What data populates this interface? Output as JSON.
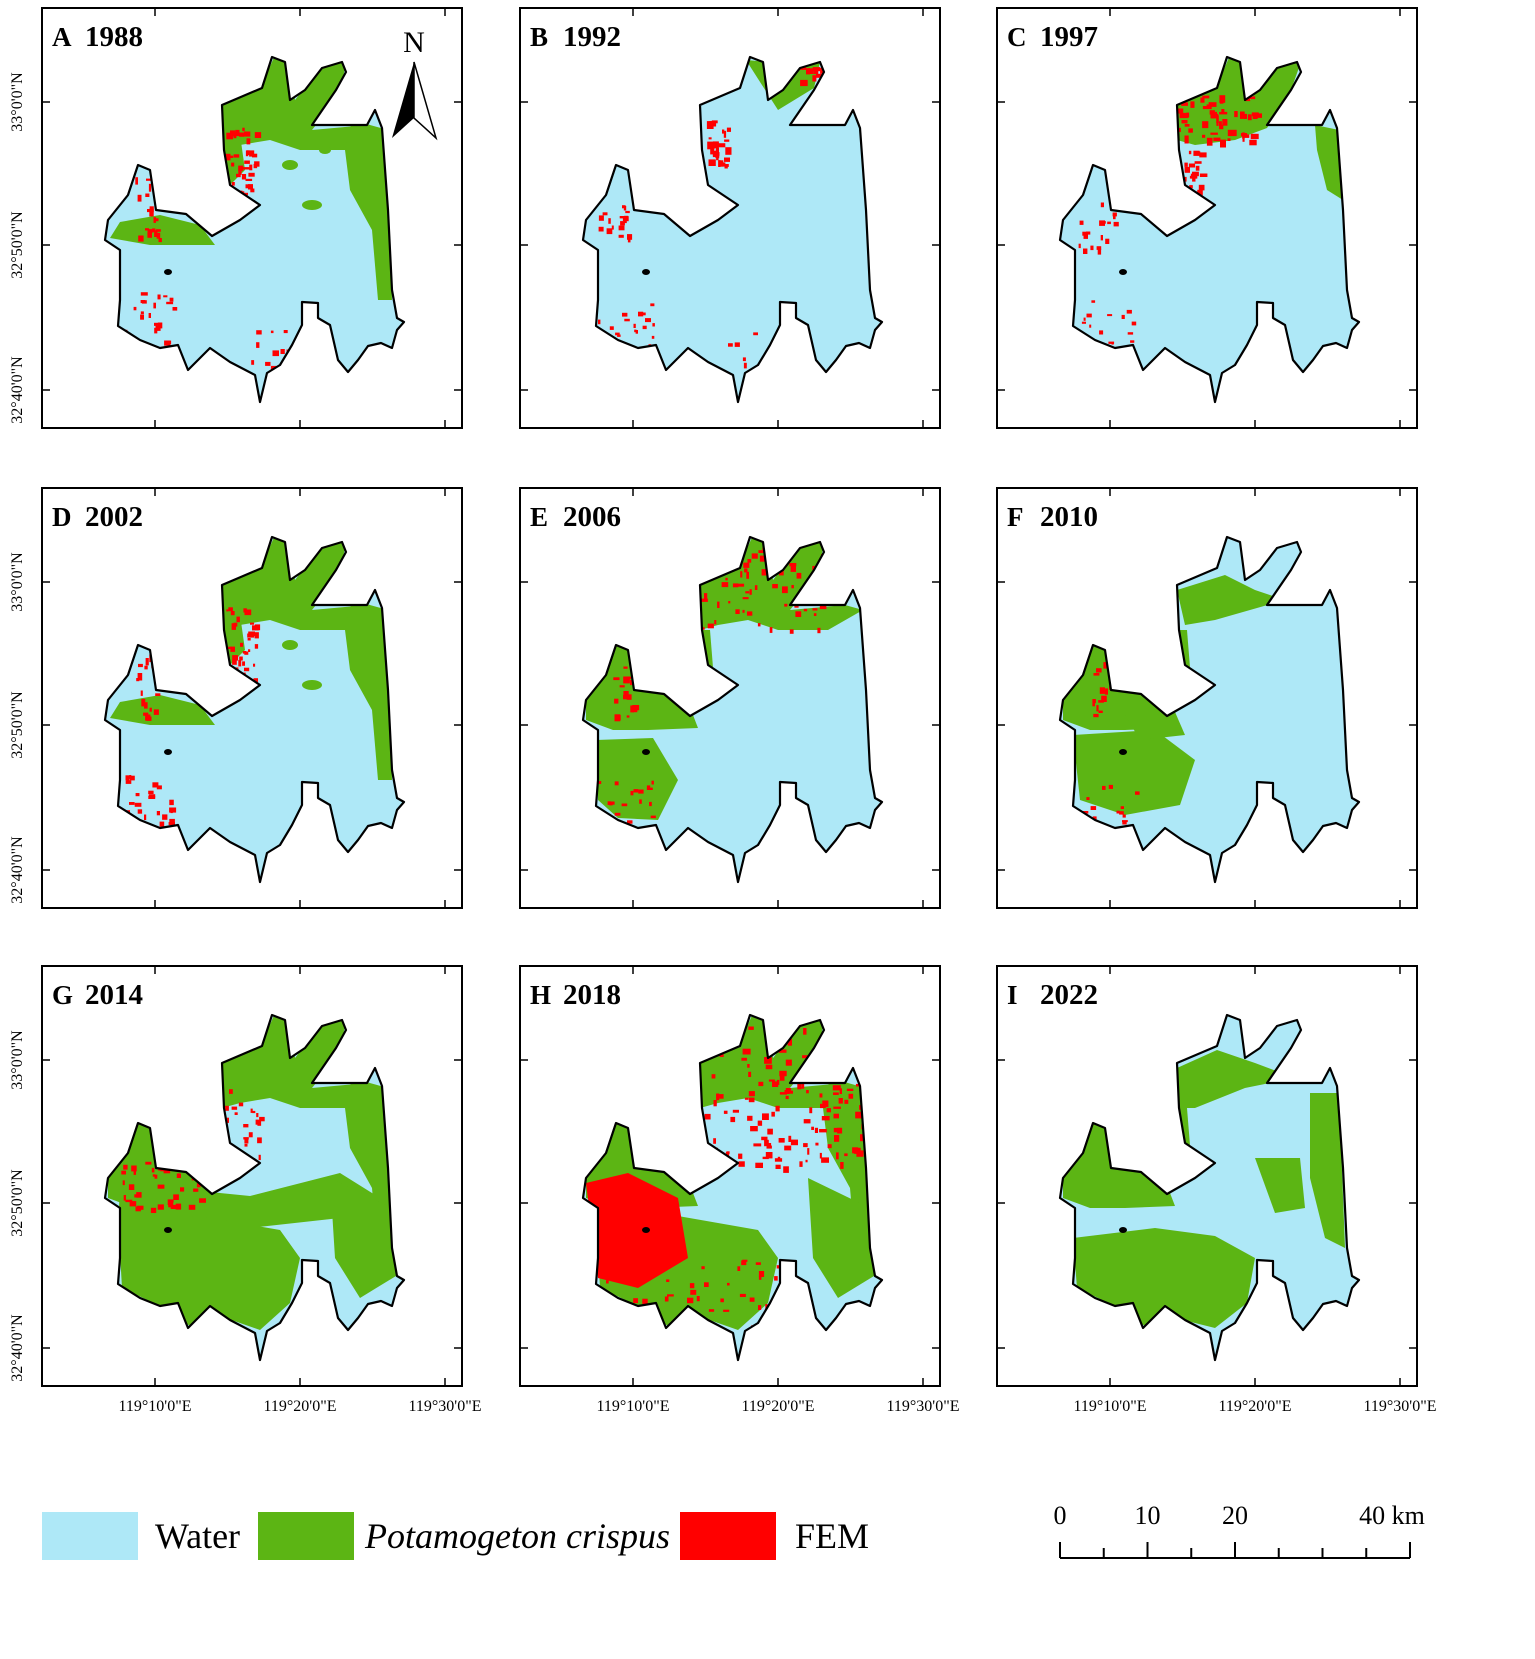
{
  "panels": [
    {
      "letter": "A",
      "year": "1988",
      "pattern": "A"
    },
    {
      "letter": "B",
      "year": "1992",
      "pattern": "B"
    },
    {
      "letter": "C",
      "year": "1997",
      "pattern": "C"
    },
    {
      "letter": "D",
      "year": "2002",
      "pattern": "D"
    },
    {
      "letter": "E",
      "year": "2006",
      "pattern": "E"
    },
    {
      "letter": "F",
      "year": "2010",
      "pattern": "F"
    },
    {
      "letter": "G",
      "year": "2014",
      "pattern": "G"
    },
    {
      "letter": "H",
      "year": "2018",
      "pattern": "H"
    },
    {
      "letter": "I",
      "year": "2022",
      "pattern": "I"
    }
  ],
  "axes": {
    "lat_labels": [
      "33°0'0\"N",
      "32°50'0\"N",
      "32°40'0\"N"
    ],
    "lon_labels": [
      "119°10'0\"E",
      "119°20'0\"E",
      "119°30'0\"E"
    ]
  },
  "north_arrow": {
    "label": "N"
  },
  "legend": {
    "items": [
      {
        "label": "Water",
        "italic": false,
        "color": "#aee8f7"
      },
      {
        "label": "Potamogeton crispus",
        "italic": true,
        "color": "#5cb514"
      },
      {
        "label": "FEM",
        "italic": false,
        "color": "#ff0000"
      }
    ]
  },
  "scale_bar": {
    "labels": [
      "0",
      "10",
      "20",
      "40 km"
    ]
  },
  "colors": {
    "water": "#aee8f7",
    "potamogeton": "#5cb514",
    "fem": "#ff0000",
    "outline": "#000000"
  }
}
